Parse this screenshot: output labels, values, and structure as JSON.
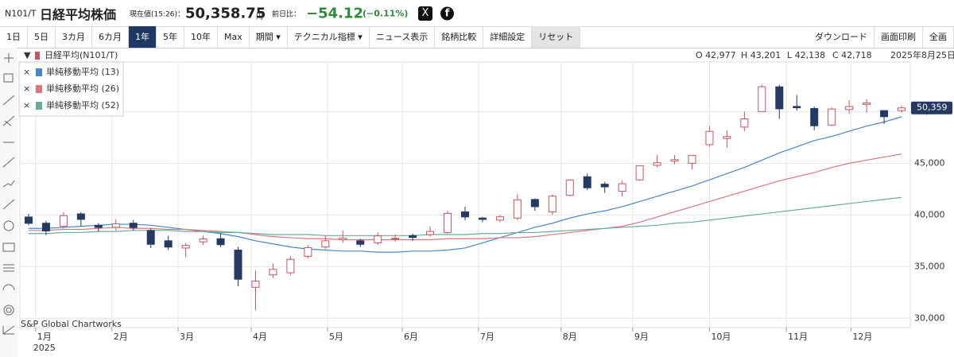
{
  "header": {
    "code": "N101/T",
    "name": "日経平均株価",
    "price_label": "現在値(15:26)：",
    "price": "50,358.75",
    "unit": "円",
    "change_label": "前日比：",
    "change": "−54.12",
    "change_pct": "(−0.11%)"
  },
  "toolbar": {
    "periods": [
      "1日",
      "5日",
      "3カ月",
      "6カ月",
      "1年",
      "5年",
      "10年",
      "Max"
    ],
    "active": 4,
    "menus": [
      "期間 ▾",
      "テクニカル指標 ▾",
      "ニュース表示",
      "銘柄比較",
      "詳細設定",
      "リセット"
    ],
    "actions": [
      "ダウンロード",
      "画面印刷",
      "全画"
    ]
  },
  "info": {
    "symbol": "日経平均(N101/T)",
    "open": "O 42,977",
    "high": "H 43,201",
    "low": "L 42,138",
    "close": "C 42,718",
    "date": "2025年8月25日"
  },
  "chart_data": {
    "type": "candlestick",
    "attribution": "S&P Global Chartworks",
    "year_label": "2025",
    "grid": true,
    "x": [
      0,
      1,
      2,
      3,
      4,
      5,
      6,
      7,
      8,
      9,
      10,
      11,
      12,
      13,
      14,
      15,
      16,
      17,
      18,
      19,
      20,
      21,
      22,
      23,
      24,
      25,
      26,
      27,
      28,
      29,
      30,
      31,
      32,
      33,
      34,
      35,
      36,
      37,
      38,
      39,
      40,
      41,
      42,
      43,
      44,
      45,
      46,
      47,
      48,
      49,
      50
    ],
    "xlim": [
      -0.5,
      50.5
    ],
    "xticks": [
      {
        "value": 0.4,
        "label": "1月"
      },
      {
        "value": 4.77,
        "label": "2月"
      },
      {
        "value": 8.56,
        "label": "3月"
      },
      {
        "value": 12.75,
        "label": "4月"
      },
      {
        "value": 17.12,
        "label": "5月"
      },
      {
        "value": 21.4,
        "label": "6月"
      },
      {
        "value": 25.77,
        "label": "7月"
      },
      {
        "value": 30.5,
        "label": "8月"
      },
      {
        "value": 34.6,
        "label": "9月"
      },
      {
        "value": 39.0,
        "label": "10月"
      },
      {
        "value": 43.4,
        "label": "11月"
      },
      {
        "value": 47.1,
        "label": "12月"
      }
    ],
    "ylim": [
      29100,
      54800
    ],
    "yticks": [
      {
        "value": 30000,
        "label": "30,000"
      },
      {
        "value": 35000,
        "label": "35,000"
      },
      {
        "value": 40000,
        "label": "40,000"
      },
      {
        "value": 45000,
        "label": "45,000"
      },
      {
        "value": 50000,
        "label": "50,000"
      }
    ],
    "candles": {
      "up_color": "#c9545c",
      "down_color": "#243a63",
      "open": [
        39800,
        39200,
        38900,
        40100,
        39000,
        38800,
        39200,
        38500,
        37500,
        36800,
        37400,
        37700,
        36600,
        33000,
        34200,
        34400,
        36000,
        36900,
        37600,
        37500,
        37300,
        37700,
        38000,
        38100,
        38300,
        40300,
        39700,
        39500,
        39700,
        41500,
        40300,
        41900,
        43700,
        42977,
        42300,
        43400,
        44800,
        45200,
        45000,
        46800,
        47400,
        48500,
        50000,
        52400,
        50500,
        50300,
        48700,
        50200,
        50700,
        50100,
        50100
      ],
      "high": [
        40100,
        39400,
        40280,
        40280,
        39200,
        39600,
        39500,
        38700,
        38000,
        37300,
        38000,
        38200,
        36900,
        34600,
        35300,
        36000,
        37100,
        38000,
        38500,
        37700,
        38300,
        38100,
        38200,
        38900,
        40400,
        40800,
        39800,
        40000,
        42000,
        41600,
        42000,
        43450,
        44000,
        43201,
        43300,
        44800,
        45800,
        45800,
        45800,
        48600,
        48200,
        50000,
        52600,
        52600,
        51600,
        50500,
        50400,
        51100,
        51200,
        50100,
        50600
      ],
      "low": [
        39000,
        38050,
        38700,
        38900,
        38400,
        38500,
        38500,
        36800,
        36600,
        35900,
        37100,
        36900,
        33100,
        30800,
        33900,
        34200,
        35800,
        36700,
        37300,
        36900,
        37100,
        37400,
        37500,
        37900,
        38200,
        39500,
        39300,
        39300,
        39500,
        40400,
        40000,
        41800,
        42400,
        42138,
        41800,
        43300,
        44600,
        44900,
        44400,
        46600,
        46500,
        48100,
        50000,
        49300,
        50100,
        48200,
        48600,
        49800,
        49900,
        48800,
        49900
      ],
      "close": [
        39190,
        38450,
        39930,
        39570,
        38790,
        39150,
        38780,
        37160,
        36890,
        37050,
        37680,
        37120,
        33780,
        33590,
        34730,
        35700,
        36830,
        37500,
        37750,
        37160,
        37970,
        37740,
        37830,
        38400,
        40150,
        39810,
        39570,
        39820,
        41460,
        40800,
        41820,
        43380,
        42630,
        42718,
        43020,
        44770,
        45050,
        45350,
        45770,
        48090,
        47580,
        49300,
        52410,
        50270,
        50370,
        48630,
        50250,
        50490,
        50840,
        49510,
        50359
      ]
    },
    "series": [
      {
        "name": "単純移動平均 (13)",
        "color": "#4a86c5",
        "values": [
          38700,
          38700,
          38800,
          38900,
          39000,
          39100,
          39100,
          39000,
          38800,
          38600,
          38400,
          38200,
          37900,
          37500,
          37200,
          36900,
          36700,
          36600,
          36500,
          36500,
          36400,
          36400,
          36500,
          36500,
          36600,
          36800,
          37300,
          37800,
          38300,
          38800,
          39200,
          39700,
          40100,
          40400,
          40800,
          41300,
          41800,
          42300,
          42800,
          43400,
          44000,
          44600,
          45300,
          46000,
          46600,
          47200,
          47600,
          48100,
          48600,
          49000,
          49500
        ]
      },
      {
        "name": "単純移動平均 (26)",
        "color": "#d9777f",
        "values": [
          38500,
          38500,
          38600,
          38600,
          38700,
          38800,
          38700,
          38700,
          38600,
          38600,
          38500,
          38400,
          38300,
          38100,
          37900,
          37800,
          37700,
          37700,
          37600,
          37600,
          37600,
          37600,
          37600,
          37600,
          37700,
          37700,
          37700,
          37800,
          37800,
          37900,
          38100,
          38300,
          38500,
          38700,
          38900,
          39300,
          39800,
          40300,
          40800,
          41300,
          41800,
          42300,
          42800,
          43300,
          43700,
          44100,
          44600,
          45000,
          45300,
          45600,
          45900
        ]
      },
      {
        "name": "単純移動平均 (52)",
        "color": "#6aab9a",
        "values": [
          38200,
          38200,
          38300,
          38300,
          38400,
          38400,
          38500,
          38500,
          38500,
          38400,
          38400,
          38300,
          38300,
          38200,
          38100,
          38100,
          38100,
          38000,
          38000,
          38000,
          38000,
          38000,
          38000,
          38100,
          38100,
          38100,
          38200,
          38200,
          38300,
          38300,
          38400,
          38500,
          38600,
          38700,
          38800,
          38900,
          39000,
          39200,
          39300,
          39500,
          39700,
          39900,
          40100,
          40300,
          40500,
          40700,
          40900,
          41100,
          41300,
          41500,
          41700
        ]
      }
    ],
    "last_value": {
      "value": 50359,
      "label": "50,359",
      "color": "#243a63"
    }
  }
}
